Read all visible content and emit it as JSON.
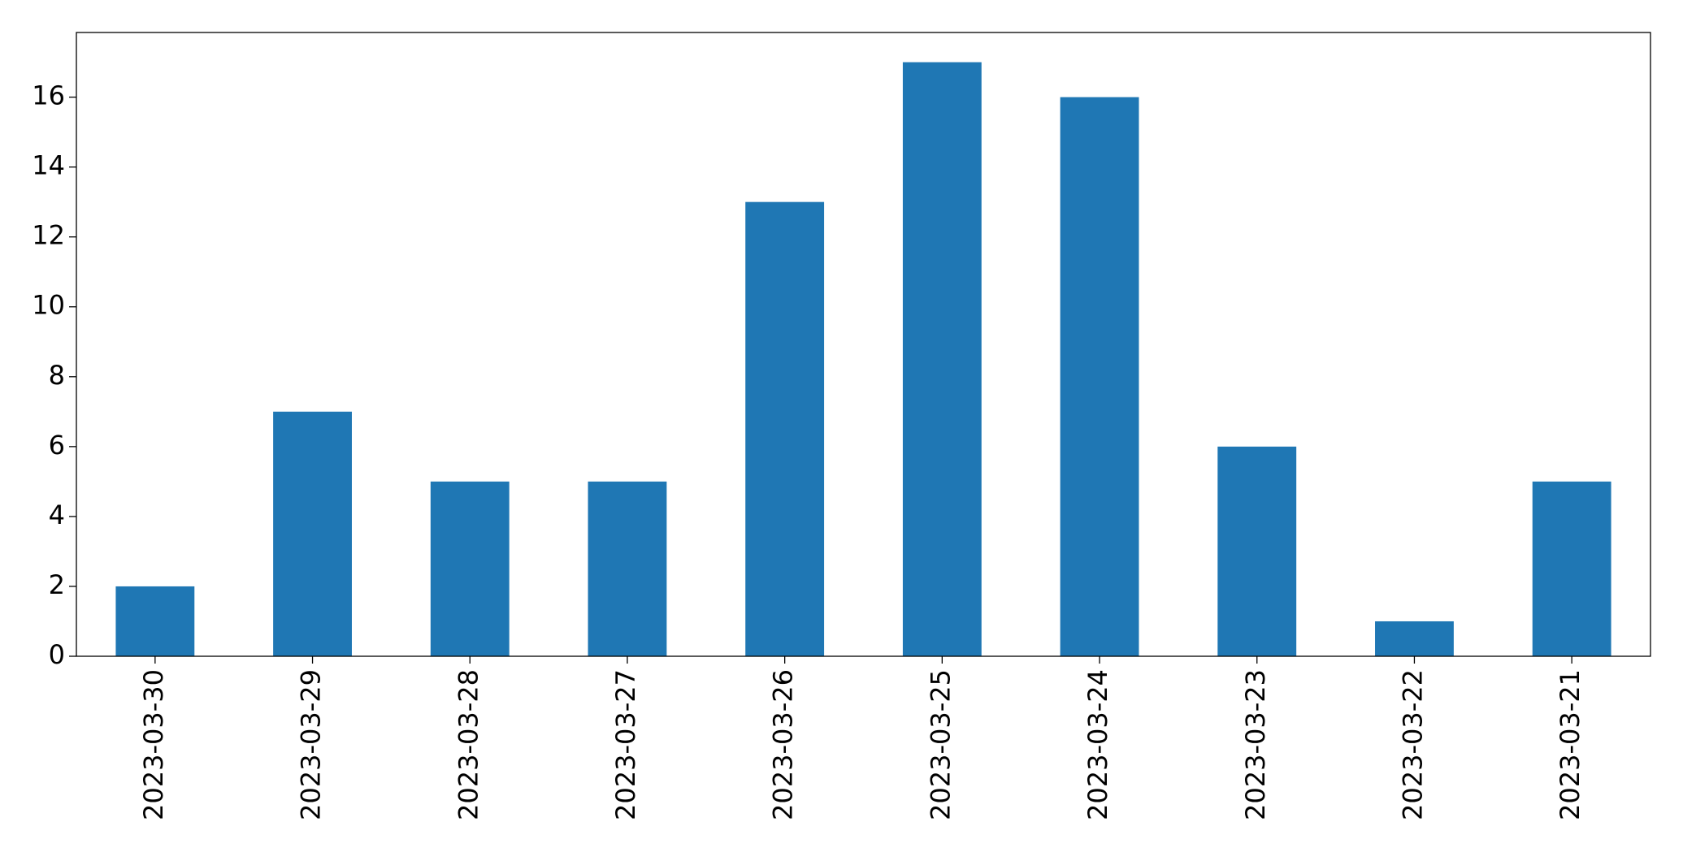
{
  "chart_data": {
    "type": "bar",
    "categories": [
      "2023-03-30",
      "2023-03-29",
      "2023-03-28",
      "2023-03-27",
      "2023-03-26",
      "2023-03-25",
      "2023-03-24",
      "2023-03-23",
      "2023-03-22",
      "2023-03-21"
    ],
    "values": [
      2,
      7,
      5,
      5,
      13,
      17,
      16,
      6,
      1,
      5
    ],
    "color": "#1f77b4",
    "ylim": [
      0,
      17.85
    ],
    "yticks": [
      0,
      2,
      4,
      6,
      8,
      10,
      12,
      14,
      16
    ],
    "grid": false
  }
}
